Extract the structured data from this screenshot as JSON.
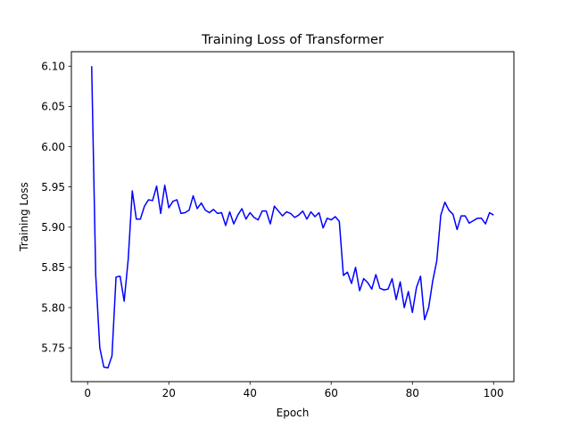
{
  "chart_data": {
    "type": "line",
    "title": "Training Loss of Transformer",
    "xlabel": "Epoch",
    "ylabel": "Training Loss",
    "xlim": [
      -4,
      105
    ],
    "ylim": [
      5.708,
      6.118
    ],
    "xticks": [
      0,
      20,
      40,
      60,
      80,
      100
    ],
    "yticks": [
      5.75,
      5.8,
      5.85,
      5.9,
      5.95,
      6.0,
      6.05,
      6.1
    ],
    "ytick_labels": [
      "5.75",
      "5.80",
      "5.85",
      "5.90",
      "5.95",
      "6.00",
      "6.05",
      "6.10"
    ],
    "xtick_labels": [
      "0",
      "20",
      "40",
      "60",
      "80",
      "100"
    ],
    "grid": false,
    "series": [
      {
        "name": "",
        "color": "#0000ff",
        "x": [
          1,
          2,
          3,
          4,
          5,
          6,
          7,
          8,
          9,
          10,
          11,
          12,
          13,
          14,
          15,
          16,
          17,
          18,
          19,
          20,
          21,
          22,
          23,
          24,
          25,
          26,
          27,
          28,
          29,
          30,
          31,
          32,
          33,
          34,
          35,
          36,
          37,
          38,
          39,
          40,
          41,
          42,
          43,
          44,
          45,
          46,
          47,
          48,
          49,
          50,
          51,
          52,
          53,
          54,
          55,
          56,
          57,
          58,
          59,
          60,
          61,
          62,
          63,
          64,
          65,
          66,
          67,
          68,
          69,
          70,
          71,
          72,
          73,
          74,
          75,
          76,
          77,
          78,
          79,
          80,
          81,
          82,
          83,
          84,
          85,
          86,
          87,
          88,
          89,
          90,
          91,
          92,
          93,
          94,
          95,
          96,
          97,
          98,
          99,
          100
        ],
        "values": [
          6.1,
          5.84,
          5.75,
          5.726,
          5.725,
          5.74,
          5.838,
          5.839,
          5.808,
          5.86,
          5.945,
          5.91,
          5.91,
          5.926,
          5.934,
          5.933,
          5.951,
          5.917,
          5.952,
          5.924,
          5.932,
          5.934,
          5.917,
          5.918,
          5.921,
          5.939,
          5.923,
          5.93,
          5.921,
          5.918,
          5.922,
          5.917,
          5.918,
          5.902,
          5.919,
          5.904,
          5.915,
          5.923,
          5.91,
          5.918,
          5.912,
          5.909,
          5.92,
          5.92,
          5.904,
          5.926,
          5.92,
          5.914,
          5.919,
          5.917,
          5.912,
          5.915,
          5.92,
          5.91,
          5.919,
          5.913,
          5.918,
          5.899,
          5.911,
          5.909,
          5.913,
          5.907,
          5.84,
          5.844,
          5.83,
          5.85,
          5.821,
          5.836,
          5.831,
          5.823,
          5.841,
          5.824,
          5.822,
          5.823,
          5.836,
          5.81,
          5.832,
          5.8,
          5.82,
          5.794,
          5.825,
          5.839,
          5.785,
          5.8,
          5.833,
          5.858,
          5.915,
          5.931,
          5.921,
          5.916,
          5.897,
          5.914,
          5.914,
          5.905,
          5.908,
          5.911,
          5.911,
          5.904,
          5.918,
          5.915
        ]
      }
    ]
  }
}
